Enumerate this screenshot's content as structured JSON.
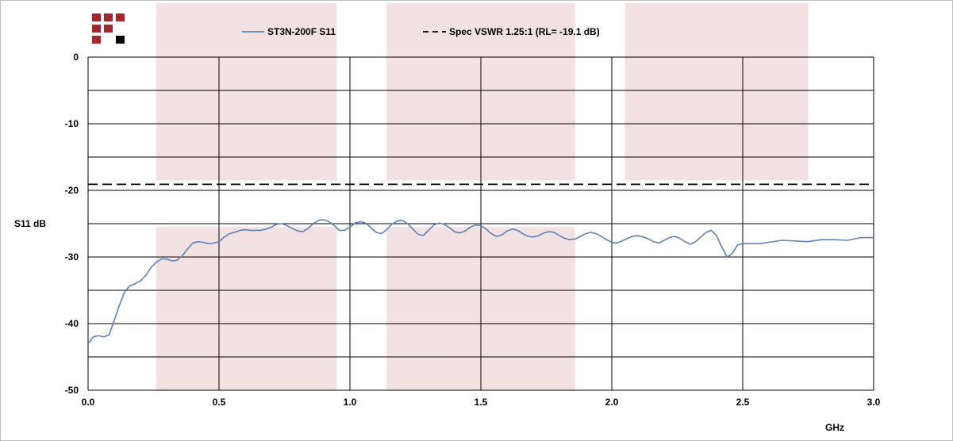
{
  "colors": {
    "measured": "#5b82be",
    "spec": "#000000",
    "band": "#f2e1e1",
    "logo_red": "#a5272d",
    "logo_black": "#000000"
  },
  "logo": {
    "icon": "company-logo-grid-icon"
  },
  "chart_data": {
    "type": "line",
    "title": "",
    "xlabel": "GHz",
    "ylabel": "S11 dB",
    "xlim": [
      0,
      3.0
    ],
    "ylim": [
      -50,
      0
    ],
    "x_ticks": [
      0.0,
      0.5,
      1.0,
      1.5,
      2.0,
      2.5,
      3.0
    ],
    "x_tick_labels": [
      "0.0",
      "0.5",
      "1.0",
      "1.5",
      "2.0",
      "2.5",
      "3.0"
    ],
    "y_ticks": [
      0,
      -10,
      -20,
      -30,
      -40,
      -50
    ],
    "y_tick_labels": [
      "0",
      "-10",
      "-20",
      "-30",
      "-40",
      "-50"
    ],
    "y_minor_grid": [
      -5,
      -15,
      -25,
      -35,
      -45
    ],
    "grid": true,
    "legend_position": "top",
    "shaded_bands": [
      {
        "x": [
          0.26,
          0.95
        ],
        "y_ranges": [
          [
            0,
            -18.5
          ],
          [
            -25.5,
            -50
          ]
        ]
      },
      {
        "x": [
          1.14,
          1.86
        ],
        "y_ranges": [
          [
            0,
            -18.5
          ],
          [
            -25.5,
            -50
          ]
        ]
      },
      {
        "x": [
          2.05,
          2.75
        ],
        "y_ranges": [
          [
            0,
            -18.5
          ]
        ]
      }
    ],
    "series": [
      {
        "name": "ST3N-200F S11",
        "style": "solid",
        "x": [
          0.0,
          0.02,
          0.04,
          0.06,
          0.08,
          0.1,
          0.12,
          0.14,
          0.16,
          0.18,
          0.2,
          0.22,
          0.24,
          0.26,
          0.28,
          0.3,
          0.32,
          0.34,
          0.36,
          0.38,
          0.4,
          0.42,
          0.44,
          0.46,
          0.48,
          0.5,
          0.52,
          0.54,
          0.56,
          0.58,
          0.6,
          0.62,
          0.64,
          0.66,
          0.68,
          0.7,
          0.72,
          0.74,
          0.76,
          0.78,
          0.8,
          0.82,
          0.84,
          0.86,
          0.88,
          0.9,
          0.92,
          0.94,
          0.96,
          0.98,
          1.0,
          1.02,
          1.04,
          1.06,
          1.08,
          1.1,
          1.12,
          1.14,
          1.16,
          1.18,
          1.2,
          1.22,
          1.24,
          1.26,
          1.28,
          1.3,
          1.32,
          1.34,
          1.36,
          1.38,
          1.4,
          1.42,
          1.44,
          1.46,
          1.48,
          1.5,
          1.52,
          1.54,
          1.56,
          1.58,
          1.6,
          1.62,
          1.64,
          1.66,
          1.68,
          1.7,
          1.72,
          1.74,
          1.76,
          1.78,
          1.8,
          1.82,
          1.84,
          1.86,
          1.88,
          1.9,
          1.92,
          1.94,
          1.96,
          1.98,
          2.0,
          2.02,
          2.04,
          2.06,
          2.08,
          2.1,
          2.12,
          2.14,
          2.16,
          2.18,
          2.2,
          2.22,
          2.24,
          2.26,
          2.28,
          2.3,
          2.32,
          2.34,
          2.36,
          2.38,
          2.4,
          2.42,
          2.44,
          2.46,
          2.48,
          2.5,
          2.52,
          2.54,
          2.56,
          2.58,
          2.6,
          2.65,
          2.7,
          2.75,
          2.8,
          2.85,
          2.9,
          2.95,
          3.0
        ],
        "y": [
          -43.0,
          -42.0,
          -41.8,
          -42.0,
          -41.7,
          -39.5,
          -37.2,
          -35.2,
          -34.3,
          -34.0,
          -33.6,
          -32.8,
          -31.6,
          -30.8,
          -30.3,
          -30.3,
          -30.6,
          -30.5,
          -29.8,
          -28.8,
          -27.9,
          -27.7,
          -27.8,
          -28.0,
          -27.9,
          -27.7,
          -27.0,
          -26.5,
          -26.3,
          -26.0,
          -25.9,
          -26.0,
          -26.0,
          -26.0,
          -25.8,
          -25.5,
          -25.1,
          -25.0,
          -25.3,
          -25.7,
          -26.1,
          -26.2,
          -25.7,
          -25.0,
          -24.5,
          -24.4,
          -24.7,
          -25.3,
          -26.0,
          -26.0,
          -25.5,
          -24.9,
          -24.7,
          -24.9,
          -25.6,
          -26.3,
          -26.5,
          -25.9,
          -25.1,
          -24.6,
          -24.5,
          -25.0,
          -25.8,
          -26.6,
          -26.8,
          -26.0,
          -25.2,
          -24.9,
          -25.1,
          -25.6,
          -26.2,
          -26.4,
          -26.1,
          -25.5,
          -25.2,
          -25.3,
          -25.8,
          -26.5,
          -26.9,
          -26.7,
          -26.1,
          -25.8,
          -26.0,
          -26.5,
          -26.9,
          -27.0,
          -26.8,
          -26.4,
          -26.2,
          -26.3,
          -26.8,
          -27.2,
          -27.4,
          -27.3,
          -26.9,
          -26.5,
          -26.3,
          -26.5,
          -26.9,
          -27.4,
          -27.8,
          -27.9,
          -27.6,
          -27.2,
          -26.9,
          -26.8,
          -27.0,
          -27.3,
          -27.7,
          -27.9,
          -27.5,
          -27.1,
          -26.9,
          -27.2,
          -27.7,
          -28.1,
          -27.7,
          -27.0,
          -26.3,
          -26.0,
          -26.8,
          -28.5,
          -30.0,
          -29.5,
          -28.2,
          -28.0,
          -28.0,
          -28.0,
          -28.0,
          -27.9,
          -27.8,
          -27.5,
          -27.6,
          -27.7,
          -27.4,
          -27.4,
          -27.5,
          -27.1,
          -27.1
        ]
      },
      {
        "name": "Spec VSWR 1.25:1 (RL= -19.1 dB)",
        "style": "dashed",
        "x": [
          0.0,
          3.0
        ],
        "y": [
          -19.1,
          -19.1
        ]
      }
    ]
  }
}
